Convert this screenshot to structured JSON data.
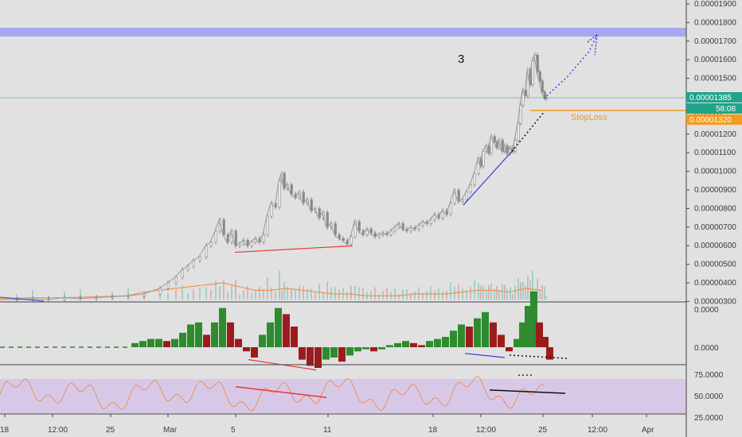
{
  "chart_data": [
    {
      "type": "line",
      "panel": "price",
      "subtype": "candlestick",
      "y_axis_position": "right",
      "ylim": [
        3e-06,
        1.95e-06
      ],
      "y_ticks": [
        "0.00001900",
        "0.00001800",
        "0.00001700",
        "0.00001600",
        "0.00001500",
        "0.00001400",
        "0.00001300",
        "0.00001200",
        "0.00001100",
        "0.00001000",
        "0.00000900",
        "0.00000800",
        "0.00000700",
        "0.00000600",
        "0.00000500",
        "0.00000400",
        "0.00000300"
      ],
      "last_price_label": "0.00001385",
      "countdown_label": "58:08",
      "stop_loss_price_label": "0.00001320",
      "stop_loss_label": "StopLoss",
      "wave_label": "3",
      "resistance_zone": [
        1.72e-05,
        1.745e-05
      ],
      "price_series": [
        [
          0,
          3.0
        ],
        [
          20,
          3.0
        ],
        [
          40,
          3.05
        ],
        [
          60,
          3.0
        ],
        [
          80,
          3.1
        ],
        [
          100,
          3.05
        ],
        [
          120,
          3.1
        ],
        [
          140,
          3.15
        ],
        [
          160,
          3.2
        ],
        [
          180,
          3.3
        ],
        [
          200,
          3.6
        ],
        [
          210,
          3.9
        ],
        [
          220,
          4.2
        ],
        [
          228,
          4.6
        ],
        [
          235,
          4.8
        ],
        [
          242,
          5.1
        ],
        [
          250,
          5.3
        ],
        [
          258,
          5.9
        ],
        [
          264,
          6.1
        ],
        [
          270,
          6.7
        ],
        [
          275,
          7.3
        ],
        [
          280,
          6.5
        ],
        [
          285,
          6.1
        ],
        [
          290,
          6.7
        ],
        [
          295,
          5.9
        ],
        [
          300,
          6.0
        ],
        [
          305,
          6.2
        ],
        [
          310,
          5.9
        ],
        [
          315,
          6.1
        ],
        [
          320,
          6.3
        ],
        [
          325,
          6.1
        ],
        [
          330,
          6.5
        ],
        [
          335,
          7.5
        ],
        [
          340,
          8.2
        ],
        [
          345,
          8.0
        ],
        [
          350,
          9.4
        ],
        [
          353,
          9.8
        ],
        [
          356,
          9.0
        ],
        [
          360,
          9.2
        ],
        [
          365,
          8.7
        ],
        [
          370,
          8.5
        ],
        [
          375,
          8.8
        ],
        [
          380,
          8.2
        ],
        [
          385,
          8.4
        ],
        [
          390,
          7.8
        ],
        [
          395,
          7.9
        ],
        [
          400,
          7.4
        ],
        [
          405,
          7.7
        ],
        [
          410,
          6.9
        ],
        [
          415,
          7.1
        ],
        [
          420,
          6.5
        ],
        [
          425,
          6.3
        ],
        [
          430,
          6.2
        ],
        [
          435,
          6.0
        ],
        [
          440,
          6.4
        ],
        [
          445,
          7.2
        ],
        [
          450,
          6.7
        ],
        [
          455,
          6.5
        ],
        [
          460,
          6.8
        ],
        [
          465,
          6.6
        ],
        [
          470,
          6.4
        ],
        [
          475,
          6.5
        ],
        [
          480,
          6.6
        ],
        [
          485,
          6.5
        ],
        [
          490,
          6.7
        ],
        [
          495,
          6.9
        ],
        [
          500,
          7.1
        ],
        [
          505,
          6.8
        ],
        [
          510,
          6.7
        ],
        [
          515,
          6.9
        ],
        [
          520,
          6.8
        ],
        [
          525,
          7.0
        ],
        [
          530,
          7.2
        ],
        [
          535,
          7.1
        ],
        [
          540,
          7.3
        ],
        [
          545,
          7.6
        ],
        [
          550,
          7.4
        ],
        [
          555,
          7.8
        ],
        [
          560,
          7.6
        ],
        [
          565,
          8.2
        ],
        [
          570,
          8.9
        ],
        [
          575,
          8.3
        ],
        [
          580,
          8.4
        ],
        [
          585,
          8.8
        ],
        [
          590,
          9.2
        ],
        [
          595,
          9.8
        ],
        [
          600,
          10.6
        ],
        [
          603,
          10.2
        ],
        [
          606,
          11.0
        ],
        [
          610,
          11.3
        ],
        [
          613,
          10.9
        ],
        [
          616,
          11.8
        ],
        [
          620,
          11.5
        ],
        [
          623,
          11.2
        ],
        [
          626,
          11.6
        ],
        [
          630,
          11.0
        ],
        [
          633,
          11.3
        ],
        [
          636,
          10.9
        ],
        [
          640,
          11.2
        ],
        [
          643,
          11.0
        ],
        [
          646,
          11.6
        ],
        [
          650,
          12.5
        ],
        [
          653,
          13.5
        ],
        [
          656,
          14.3
        ],
        [
          659,
          14.0
        ],
        [
          662,
          15.4
        ],
        [
          665,
          14.6
        ],
        [
          668,
          15.9
        ],
        [
          671,
          16.2
        ],
        [
          674,
          15.3
        ],
        [
          677,
          14.8
        ],
        [
          680,
          14.2
        ],
        [
          683,
          13.9
        ],
        [
          685,
          13.85
        ]
      ],
      "volume_series": [
        [
          0,
          3.05
        ],
        [
          40,
          3.1
        ],
        [
          80,
          3.1
        ],
        [
          120,
          3.15
        ],
        [
          160,
          3.2
        ],
        [
          180,
          3.4
        ],
        [
          200,
          3.5
        ],
        [
          220,
          3.6
        ],
        [
          240,
          3.7
        ],
        [
          260,
          3.8
        ],
        [
          280,
          3.9
        ],
        [
          300,
          3.7
        ],
        [
          320,
          3.5
        ],
        [
          340,
          3.5
        ],
        [
          360,
          3.6
        ],
        [
          380,
          3.5
        ],
        [
          400,
          3.4
        ],
        [
          420,
          3.3
        ],
        [
          440,
          3.3
        ],
        [
          460,
          3.2
        ],
        [
          480,
          3.2
        ],
        [
          500,
          3.2
        ],
        [
          520,
          3.3
        ],
        [
          540,
          3.3
        ],
        [
          560,
          3.3
        ],
        [
          580,
          3.4
        ],
        [
          600,
          3.5
        ],
        [
          620,
          3.5
        ],
        [
          640,
          3.4
        ],
        [
          660,
          3.6
        ],
        [
          680,
          3.5
        ]
      ],
      "trend_lines": [
        {
          "color": "#e53935",
          "from": [
            295,
            5.55
          ],
          "to": [
            443,
            5.9
          ]
        },
        {
          "color": "#2f3dd8",
          "from": [
            582,
            8.1
          ],
          "to": [
            643,
            11.0
          ]
        }
      ],
      "projection": {
        "dotted_black_to": [
          683,
          13.1
        ],
        "dotted_blue_to": [
          750,
          17.3
        ]
      }
    },
    {
      "type": "bar",
      "panel": "momentum",
      "y_ticks": [
        "0.0000",
        "0.0000"
      ],
      "bars": [
        [
          165,
          0.1
        ],
        [
          175,
          0.15
        ],
        [
          185,
          0.2
        ],
        [
          195,
          0.2
        ],
        [
          205,
          0.15
        ],
        [
          215,
          0.2
        ],
        [
          225,
          0.35
        ],
        [
          235,
          0.55
        ],
        [
          245,
          0.6
        ],
        [
          255,
          0.3
        ],
        [
          265,
          0.6
        ],
        [
          275,
          0.95
        ],
        [
          285,
          0.6
        ],
        [
          295,
          0.2
        ],
        [
          305,
          -0.1
        ],
        [
          315,
          -0.25
        ],
        [
          325,
          0.3
        ],
        [
          335,
          0.6
        ],
        [
          345,
          0.95
        ],
        [
          355,
          0.8
        ],
        [
          365,
          0.5
        ],
        [
          375,
          -0.3
        ],
        [
          385,
          -0.45
        ],
        [
          395,
          -0.5
        ],
        [
          405,
          -0.3
        ],
        [
          415,
          -0.25
        ],
        [
          425,
          -0.35
        ],
        [
          435,
          -0.2
        ],
        [
          445,
          -0.1
        ],
        [
          455,
          -0.05
        ],
        [
          465,
          -0.1
        ],
        [
          475,
          -0.05
        ],
        [
          485,
          0.05
        ],
        [
          495,
          0.1
        ],
        [
          505,
          0.15
        ],
        [
          515,
          0.1
        ],
        [
          525,
          0.05
        ],
        [
          535,
          0.15
        ],
        [
          545,
          0.2
        ],
        [
          555,
          0.25
        ],
        [
          565,
          0.4
        ],
        [
          575,
          0.55
        ],
        [
          585,
          0.5
        ],
        [
          595,
          0.7
        ],
        [
          605,
          0.85
        ],
        [
          615,
          0.6
        ],
        [
          625,
          0.3
        ],
        [
          635,
          -0.1
        ],
        [
          645,
          0.2
        ],
        [
          652,
          0.6
        ],
        [
          659,
          1.0
        ],
        [
          666,
          1.35
        ],
        [
          673,
          0.6
        ],
        [
          680,
          0.25
        ],
        [
          686,
          -0.3
        ]
      ],
      "trend_lines": [
        {
          "color": "#e53935",
          "from": [
            312,
            -0.3
          ],
          "to": [
            397,
            -0.55
          ]
        },
        {
          "color": "#2f3dd8",
          "from": [
            584,
            -0.15
          ],
          "to": [
            634,
            -0.25
          ]
        }
      ]
    },
    {
      "type": "line",
      "panel": "rsi",
      "ylim": [
        25,
        75
      ],
      "y_ticks": [
        "75.0000",
        "50.0000",
        "25.0000"
      ],
      "band": [
        30,
        70
      ],
      "trend_lines": [
        {
          "color": "#e53935",
          "from": [
            296,
            57
          ],
          "to": [
            410,
            44
          ]
        },
        {
          "color": "#111111",
          "from": [
            615,
            53
          ],
          "to": [
            710,
            49
          ]
        }
      ]
    }
  ],
  "x_ticks": [
    "18",
    "12:00",
    "25",
    "Mar",
    "5",
    "11",
    "18",
    "12:00",
    "25",
    "12:00",
    "Apr"
  ],
  "colors": {
    "background": "#e1e1e1",
    "up": "#2e8b2e",
    "down": "#9b1c1c",
    "price_line": "#8a8a8a",
    "volume_ma": "#f2944c",
    "rsi_line": "#f08a4b",
    "rsi_band": "#d8c8e8",
    "resistance": "#a9a6f0",
    "stop_loss": "#f59a1f",
    "last_price": "#1fa38a"
  }
}
